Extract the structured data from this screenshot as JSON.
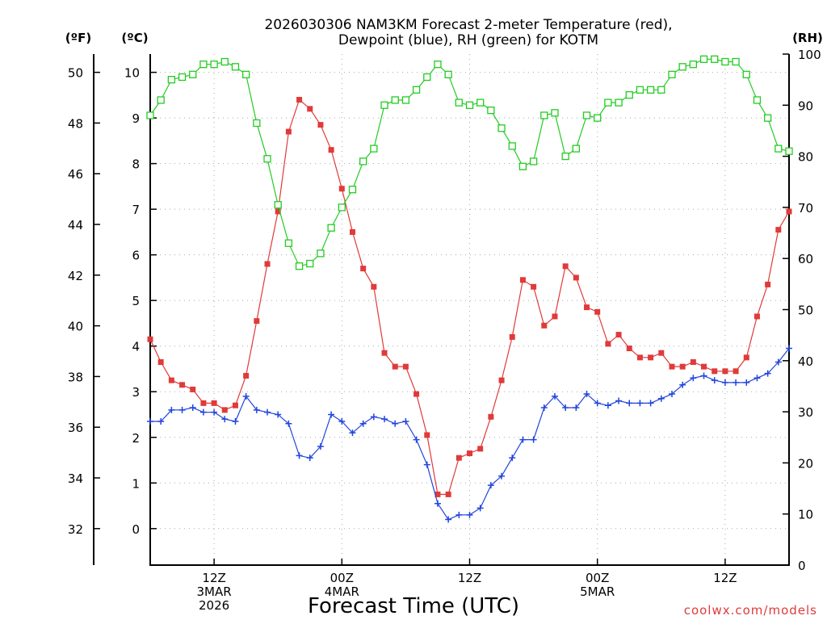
{
  "chart_data": {
    "type": "line",
    "title_lines": [
      "2026030306 NAM3KM Forecast 2-meter Temperature (red),",
      "Dewpoint (blue), RH (green) for KOTM"
    ],
    "xlabel": "Forecast Time (UTC)",
    "credit": "coolwx.com/models",
    "units": {
      "fahrenheit": "(ºF)",
      "celsius": "(ºC)",
      "rh": "(RH)"
    },
    "x_ticks": [
      {
        "hour": 6,
        "lines": [
          "12Z",
          "3MAR",
          "2026"
        ]
      },
      {
        "hour": 18,
        "lines": [
          "00Z",
          "4MAR"
        ]
      },
      {
        "hour": 30,
        "lines": [
          "12Z"
        ]
      },
      {
        "hour": 42,
        "lines": [
          "00Z",
          "5MAR"
        ]
      },
      {
        "hour": 54,
        "lines": [
          "12Z"
        ]
      }
    ],
    "x_range_hours": [
      0,
      60
    ],
    "y_celsius_range": [
      -0.8,
      10.4
    ],
    "y_celsius_ticks": [
      "0",
      "1",
      "2",
      "3",
      "4",
      "5",
      "6",
      "7",
      "8",
      "9",
      "10"
    ],
    "y_fahrenheit_ticks": [
      "32",
      "34",
      "36",
      "38",
      "40",
      "42",
      "44",
      "46",
      "48",
      "50"
    ],
    "y_rh_range": [
      0,
      100
    ],
    "y_rh_ticks": [
      "0",
      "10",
      "20",
      "30",
      "40",
      "50",
      "60",
      "70",
      "80",
      "90",
      "100"
    ],
    "series": [
      {
        "name": "Temperature",
        "axis": "celsius",
        "color": "#e03a3a",
        "marker": "filled-square",
        "x": [
          0,
          1,
          2,
          3,
          4,
          5,
          6,
          7,
          8,
          9,
          10,
          11,
          12,
          13,
          14,
          15,
          16,
          17,
          18,
          19,
          20,
          21,
          22,
          23,
          24,
          25,
          26,
          27,
          28,
          29,
          30,
          31,
          32,
          33,
          34,
          35,
          36,
          37,
          38,
          39,
          40,
          41,
          42,
          43,
          44,
          45,
          46,
          47,
          48,
          49,
          50,
          51,
          52,
          53,
          54,
          55,
          56,
          57,
          58,
          59,
          60
        ],
        "values": [
          4.15,
          3.65,
          3.25,
          3.15,
          3.05,
          2.75,
          2.75,
          2.6,
          2.7,
          3.35,
          4.55,
          5.8,
          6.95,
          8.7,
          9.4,
          9.2,
          8.85,
          8.3,
          7.45,
          6.5,
          5.7,
          5.3,
          3.85,
          3.55,
          3.55,
          2.95,
          2.05,
          0.75,
          0.75,
          1.55,
          1.65,
          1.75,
          2.45,
          3.25,
          4.2,
          5.45,
          5.3,
          4.45,
          4.65,
          5.75,
          5.5,
          4.85,
          4.75,
          4.05,
          4.25,
          3.95,
          3.75,
          3.75,
          3.85,
          3.55,
          3.55,
          3.65,
          3.55,
          3.45,
          3.45,
          3.45,
          3.75,
          4.65,
          5.35,
          6.55,
          6.95
        ]
      },
      {
        "name": "Dewpoint",
        "axis": "celsius",
        "color": "#2244dd",
        "marker": "plus",
        "x": [
          0,
          1,
          2,
          3,
          4,
          5,
          6,
          7,
          8,
          9,
          10,
          11,
          12,
          13,
          14,
          15,
          16,
          17,
          18,
          19,
          20,
          21,
          22,
          23,
          24,
          25,
          26,
          27,
          28,
          29,
          30,
          31,
          32,
          33,
          34,
          35,
          36,
          37,
          38,
          39,
          40,
          41,
          42,
          43,
          44,
          45,
          46,
          47,
          48,
          49,
          50,
          51,
          52,
          53,
          54,
          55,
          56,
          57,
          58,
          59,
          60
        ],
        "values": [
          2.35,
          2.35,
          2.6,
          2.6,
          2.65,
          2.55,
          2.55,
          2.4,
          2.35,
          2.9,
          2.6,
          2.55,
          2.5,
          2.3,
          1.6,
          1.55,
          1.8,
          2.5,
          2.35,
          2.1,
          2.3,
          2.45,
          2.4,
          2.3,
          2.35,
          1.95,
          1.4,
          0.55,
          0.2,
          0.3,
          0.3,
          0.45,
          0.95,
          1.15,
          1.55,
          1.95,
          1.95,
          2.65,
          2.9,
          2.65,
          2.65,
          2.95,
          2.75,
          2.7,
          2.8,
          2.75,
          2.75,
          2.75,
          2.85,
          2.95,
          3.15,
          3.3,
          3.35,
          3.25,
          3.2,
          3.2,
          3.2,
          3.3,
          3.4,
          3.65,
          3.95
        ]
      },
      {
        "name": "RH",
        "axis": "rh",
        "color": "#22cc22",
        "marker": "open-square",
        "x": [
          0,
          1,
          2,
          3,
          4,
          5,
          6,
          7,
          8,
          9,
          10,
          11,
          12,
          13,
          14,
          15,
          16,
          17,
          18,
          19,
          20,
          21,
          22,
          23,
          24,
          25,
          26,
          27,
          28,
          29,
          30,
          31,
          32,
          33,
          34,
          35,
          36,
          37,
          38,
          39,
          40,
          41,
          42,
          43,
          44,
          45,
          46,
          47,
          48,
          49,
          50,
          51,
          52,
          53,
          54,
          55,
          56,
          57,
          58,
          59,
          60
        ],
        "values": [
          88,
          91,
          95,
          95.5,
          96,
          98,
          98,
          98.5,
          97.5,
          96,
          86.5,
          79.5,
          70.5,
          63,
          58.5,
          59,
          61,
          66,
          70,
          73.5,
          79,
          81.5,
          90,
          91,
          91,
          93,
          95.5,
          98,
          96,
          90.5,
          90,
          90.5,
          89,
          85.5,
          82,
          78,
          79,
          88,
          88.5,
          80,
          81.5,
          88,
          87.5,
          90.5,
          90.5,
          92,
          93,
          93,
          93,
          96,
          97.5,
          98,
          99,
          99,
          98.5,
          98.5,
          96,
          91,
          87.5,
          81.5,
          81
        ]
      }
    ]
  }
}
